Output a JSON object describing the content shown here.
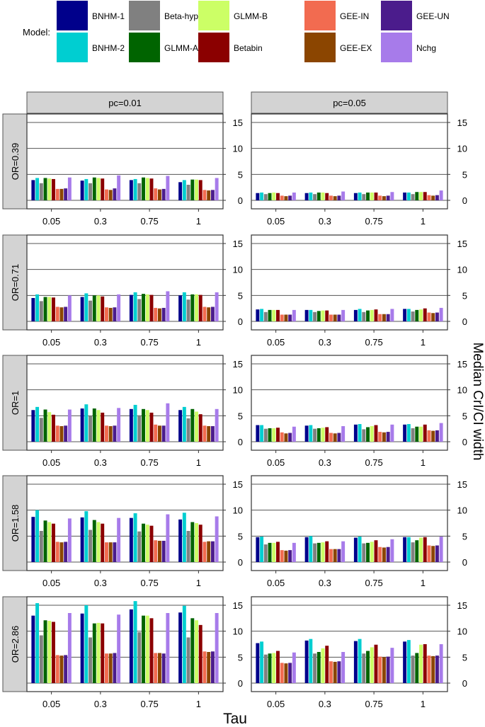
{
  "legend": {
    "title": "Model:",
    "entries": [
      {
        "name": "BNHM-1",
        "color": "#00008B"
      },
      {
        "name": "BNHM-2",
        "color": "#00CED1"
      },
      {
        "name": "Beta-hyperprior",
        "color": "#808080"
      },
      {
        "name": "GLMM-A",
        "color": "#006400"
      },
      {
        "name": "GLMM-B",
        "color": "#CCFF66"
      },
      {
        "name": "Betabin",
        "color": "#8B0000"
      },
      {
        "name": "GEE-IN",
        "color": "#F26B50"
      },
      {
        "name": "GEE-EX",
        "color": "#8B4500"
      },
      {
        "name": "GEE-UN",
        "color": "#4B1C8C"
      },
      {
        "name": "Nchg",
        "color": "#A77BEA"
      }
    ]
  },
  "chart_data": {
    "type": "bar",
    "xlabel": "Tau",
    "ylabel": "Median CrI/CI width",
    "ylim": [
      0,
      15
    ],
    "yticks": [
      "0",
      "5",
      "10",
      "15"
    ],
    "categories": [
      "0.05",
      "0.3",
      "0.75",
      "1"
    ],
    "columns": [
      "pc=0.01",
      "pc=0.05"
    ],
    "rows": [
      "OR=0.39",
      "OR=0.71",
      "OR=1",
      "OR=1.58",
      "OR=2.86"
    ],
    "series_names": [
      "BNHM-1",
      "BNHM-2",
      "Beta-hyperprior",
      "GLMM-A",
      "GLMM-B",
      "Betabin",
      "GEE-IN",
      "GEE-EX",
      "GEE-UN",
      "Nchg"
    ],
    "panels": [
      {
        "row": "OR=0.39",
        "col": "pc=0.01",
        "values": [
          [
            3.9,
            4.3,
            3.3,
            4.3,
            4.2,
            4.1,
            2.2,
            2.2,
            2.3,
            4.4
          ],
          [
            3.8,
            4.1,
            3.3,
            4.4,
            4.3,
            4.2,
            2.1,
            2.0,
            2.3,
            4.8
          ],
          [
            3.9,
            4.1,
            3.3,
            4.4,
            4.3,
            4.2,
            2.3,
            2.1,
            2.2,
            4.7
          ],
          [
            3.5,
            3.9,
            3.0,
            4.0,
            4.0,
            3.9,
            2.0,
            1.9,
            2.0,
            4.3
          ]
        ]
      },
      {
        "row": "OR=0.39",
        "col": "pc=0.05",
        "values": [
          [
            1.4,
            1.5,
            1.2,
            1.4,
            1.5,
            1.4,
            0.9,
            0.8,
            0.9,
            1.5
          ],
          [
            1.4,
            1.5,
            1.2,
            1.5,
            1.5,
            1.4,
            0.9,
            0.8,
            0.9,
            1.7
          ],
          [
            1.4,
            1.5,
            1.2,
            1.5,
            1.5,
            1.5,
            0.9,
            0.8,
            0.9,
            1.6
          ],
          [
            1.5,
            1.5,
            1.2,
            1.6,
            1.6,
            1.6,
            1.0,
            0.9,
            1.0,
            1.9
          ]
        ]
      },
      {
        "row": "OR=0.71",
        "col": "pc=0.01",
        "values": [
          [
            4.5,
            5.2,
            3.9,
            4.7,
            4.7,
            4.6,
            2.8,
            2.7,
            2.8,
            5.0
          ],
          [
            4.7,
            5.4,
            4.0,
            5.0,
            5.0,
            4.8,
            2.7,
            2.6,
            2.7,
            5.2
          ],
          [
            5.1,
            5.6,
            4.3,
            5.3,
            5.2,
            5.1,
            2.6,
            2.5,
            2.6,
            5.8
          ],
          [
            5.0,
            5.6,
            4.2,
            5.2,
            5.2,
            5.1,
            2.8,
            2.7,
            2.8,
            5.6
          ]
        ]
      },
      {
        "row": "OR=0.71",
        "col": "pc=0.05",
        "values": [
          [
            2.3,
            2.4,
            1.8,
            2.2,
            2.2,
            2.2,
            1.3,
            1.3,
            1.3,
            2.2
          ],
          [
            2.2,
            2.2,
            1.8,
            2.0,
            2.1,
            2.1,
            1.3,
            1.3,
            1.3,
            2.2
          ],
          [
            2.2,
            2.4,
            1.8,
            2.1,
            2.2,
            2.3,
            1.4,
            1.4,
            1.4,
            2.4
          ],
          [
            2.4,
            2.4,
            1.9,
            2.2,
            2.3,
            2.5,
            1.7,
            1.6,
            1.7,
            2.6
          ]
        ]
      },
      {
        "row": "OR=1",
        "col": "pc=0.01",
        "values": [
          [
            6.1,
            6.7,
            4.6,
            6.2,
            5.7,
            5.2,
            3.1,
            3.0,
            3.1,
            6.2
          ],
          [
            6.4,
            7.2,
            5.0,
            6.4,
            6.1,
            5.6,
            3.1,
            3.0,
            3.1,
            6.5
          ],
          [
            6.3,
            7.1,
            5.1,
            6.3,
            6.1,
            5.6,
            3.3,
            3.1,
            3.1,
            7.4
          ],
          [
            6.1,
            6.7,
            4.5,
            6.3,
            5.8,
            5.3,
            3.1,
            3.0,
            3.0,
            6.3
          ]
        ]
      },
      {
        "row": "OR=1",
        "col": "pc=0.05",
        "values": [
          [
            3.2,
            3.2,
            2.5,
            2.6,
            2.6,
            2.7,
            1.8,
            1.6,
            1.7,
            2.9
          ],
          [
            3.1,
            3.2,
            2.5,
            2.6,
            2.7,
            2.8,
            1.7,
            1.6,
            1.7,
            3.0
          ],
          [
            3.3,
            3.4,
            2.4,
            2.8,
            3.0,
            3.2,
            1.9,
            1.8,
            1.9,
            3.3
          ],
          [
            3.3,
            3.4,
            2.6,
            2.9,
            2.9,
            3.3,
            2.2,
            2.1,
            2.2,
            3.6
          ]
        ]
      },
      {
        "row": "OR=1.58",
        "col": "pc=0.01",
        "values": [
          [
            8.7,
            10.0,
            6.0,
            8.0,
            7.7,
            7.4,
            3.9,
            3.8,
            3.9,
            8.4
          ],
          [
            8.6,
            9.8,
            6.2,
            8.1,
            7.7,
            7.4,
            3.8,
            3.8,
            3.8,
            8.5
          ],
          [
            8.5,
            9.4,
            5.9,
            7.4,
            7.2,
            7.0,
            4.2,
            4.1,
            4.1,
            9.2
          ],
          [
            8.2,
            9.5,
            6.0,
            7.7,
            7.5,
            7.2,
            3.9,
            4.0,
            4.0,
            8.8
          ]
        ]
      },
      {
        "row": "OR=1.58",
        "col": "pc=0.05",
        "values": [
          [
            4.8,
            4.9,
            3.4,
            3.7,
            3.7,
            3.9,
            2.3,
            2.2,
            2.3,
            3.7
          ],
          [
            4.8,
            5.0,
            3.6,
            3.7,
            3.8,
            4.0,
            2.5,
            2.5,
            2.5,
            4.0
          ],
          [
            4.7,
            4.9,
            3.6,
            3.7,
            3.9,
            4.2,
            2.9,
            2.8,
            2.9,
            4.4
          ],
          [
            4.8,
            4.8,
            3.8,
            4.2,
            4.7,
            4.8,
            3.2,
            3.1,
            3.2,
            4.9
          ]
        ]
      },
      {
        "row": "OR=2.86",
        "col": "pc=0.01",
        "values": [
          [
            13.0,
            15.4,
            9.2,
            12.1,
            12.0,
            11.8,
            5.4,
            5.3,
            5.4,
            13.5
          ],
          [
            13.4,
            15.0,
            8.8,
            11.5,
            11.6,
            11.5,
            5.7,
            5.7,
            5.8,
            13.2
          ],
          [
            14.2,
            15.8,
            9.8,
            13.0,
            13.0,
            12.5,
            5.8,
            5.8,
            5.7,
            13.5
          ],
          [
            13.6,
            14.9,
            8.8,
            12.5,
            12.1,
            11.2,
            6.1,
            6.0,
            6.1,
            13.5
          ]
        ]
      },
      {
        "row": "OR=2.86",
        "col": "pc=0.05",
        "values": [
          [
            7.7,
            8.0,
            5.5,
            5.7,
            5.8,
            6.2,
            3.9,
            3.8,
            3.9,
            5.9
          ],
          [
            8.2,
            8.5,
            5.7,
            6.0,
            6.7,
            7.2,
            4.2,
            4.1,
            4.2,
            6.0
          ],
          [
            8.1,
            8.5,
            5.7,
            6.2,
            6.9,
            7.4,
            5.1,
            5.0,
            5.1,
            6.8
          ],
          [
            8.0,
            8.3,
            5.3,
            5.8,
            7.4,
            7.5,
            5.3,
            5.2,
            5.3,
            7.5
          ]
        ]
      }
    ]
  }
}
